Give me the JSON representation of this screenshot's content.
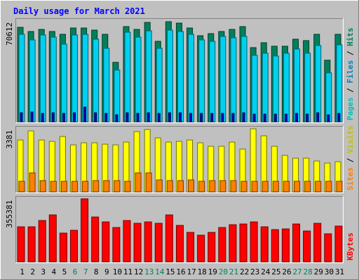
{
  "chart_data": {
    "type": "bar",
    "title": "Daily usage for March 2021",
    "categories": [
      "1",
      "2",
      "3",
      "4",
      "5",
      "6",
      "7",
      "8",
      "9",
      "10",
      "11",
      "12",
      "13",
      "14",
      "15",
      "16",
      "17",
      "18",
      "19",
      "20",
      "21",
      "22",
      "23",
      "24",
      "25",
      "26",
      "27",
      "28",
      "29",
      "30",
      "31"
    ],
    "weekend_days": [
      "6",
      "7",
      "13",
      "14",
      "20",
      "21",
      "27",
      "28"
    ],
    "panels": [
      {
        "id": "top",
        "max_label": "70612",
        "ylim": [
          0,
          70612
        ],
        "legend": [
          "Pages",
          "Files",
          "Hits"
        ],
        "series": [
          {
            "name": "Hits",
            "color": "#00805c",
            "values": [
              66094,
              63447,
              64817,
              63447,
              61500,
              65500,
              65900,
              64400,
              61500,
              41800,
              66500,
              64500,
              69800,
              56300,
              70100,
              69000,
              65500,
              60400,
              62000,
              63447,
              64500,
              66700,
              52000,
              55500,
              53000,
              53000,
              58000,
              57000,
              61500,
              43000,
              61500
            ]
          },
          {
            "name": "Files",
            "color": "#00d0f0",
            "values": [
              61400,
              57500,
              61000,
              59500,
              54600,
              61000,
              61400,
              57800,
              51600,
              36100,
              63000,
              59300,
              63700,
              51300,
              64000,
              63200,
              61400,
              57600,
              56300,
              60000,
              58800,
              60000,
              46500,
              48000,
              46200,
              48000,
              51000,
              48200,
              53300,
              34400,
              54000
            ]
          },
          {
            "name": "Pages",
            "color": "#0000c0",
            "values": [
              6300,
              6700,
              6100,
              6300,
              5900,
              6300,
              10100,
              6300,
              6100,
              4700,
              6300,
              6100,
              6300,
              5700,
              6300,
              6300,
              6100,
              6100,
              5900,
              6100,
              6100,
              6300,
              5500,
              5500,
              5500,
              5500,
              5700,
              5500,
              6300,
              4700,
              5700
            ]
          }
        ]
      },
      {
        "id": "middle",
        "max_label": "3381",
        "ylim": [
          0,
          3381
        ],
        "legend": [
          "Sites",
          "Visits"
        ],
        "series": [
          {
            "name": "Visits",
            "color": "#ffff00",
            "values": [
              2780,
              3250,
              2790,
              2710,
              2950,
              2500,
              2630,
              2630,
              2550,
              2520,
              2660,
              3230,
              3330,
              2880,
              2660,
              2720,
              2780,
              2620,
              2430,
              2460,
              2660,
              2310,
              3380,
              3000,
              2460,
              1940,
              1790,
              1790,
              1660,
              1530,
              1610
            ]
          },
          {
            "name": "Sites",
            "color": "#ff8000",
            "values": [
              580,
              1010,
              590,
              550,
              560,
              580,
              560,
              590,
              590,
              590,
              560,
              1010,
              1000,
              640,
              590,
              590,
              640,
              570,
              590,
              590,
              590,
              580,
              560,
              560,
              560,
              550,
              560,
              550,
              560,
              550,
              550
            ]
          }
        ]
      },
      {
        "id": "bottom",
        "max_label": "355381",
        "ylim": [
          0,
          355381
        ],
        "legend": [
          "KBytes"
        ],
        "series": [
          {
            "name": "KBytes",
            "color": "#ff0000",
            "values": [
              196000,
              196000,
              232000,
              266000,
              160000,
              178000,
              355381,
              252000,
              226000,
              195000,
              234000,
              219000,
              225000,
              218000,
              264000,
              207000,
              164000,
              152000,
              164000,
              192000,
              210000,
              212000,
              224000,
              196000,
              183000,
              186000,
              212000,
              173000,
              216000,
              156000,
              202000
            ]
          }
        ]
      }
    ]
  }
}
